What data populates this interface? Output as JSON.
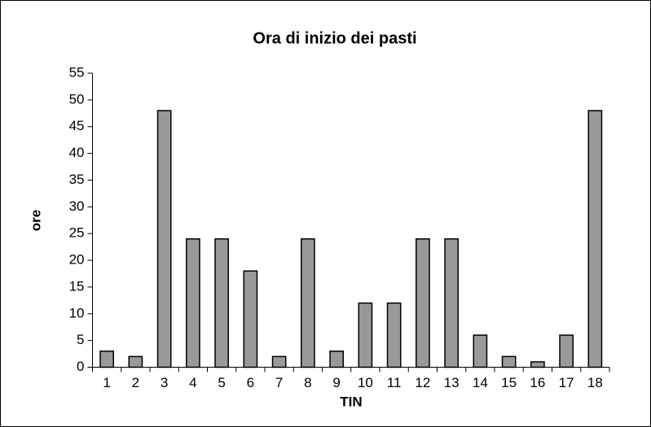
{
  "chart_data": {
    "type": "bar",
    "title": "Ora di inizio dei pasti",
    "x_label": "TIN",
    "y_label": "ore",
    "categories": [
      "1",
      "2",
      "3",
      "4",
      "5",
      "6",
      "7",
      "8",
      "9",
      "10",
      "11",
      "12",
      "13",
      "14",
      "15",
      "16",
      "17",
      "18"
    ],
    "values": [
      3,
      2,
      48,
      24,
      24,
      18,
      2,
      24,
      3,
      12,
      12,
      24,
      24,
      6,
      2,
      1,
      6,
      48
    ],
    "color": "#999999",
    "ylim": [
      0,
      55
    ],
    "yticks": [
      0,
      5,
      10,
      15,
      20,
      25,
      30,
      35,
      40,
      45,
      50,
      55
    ],
    "grid": false
  }
}
